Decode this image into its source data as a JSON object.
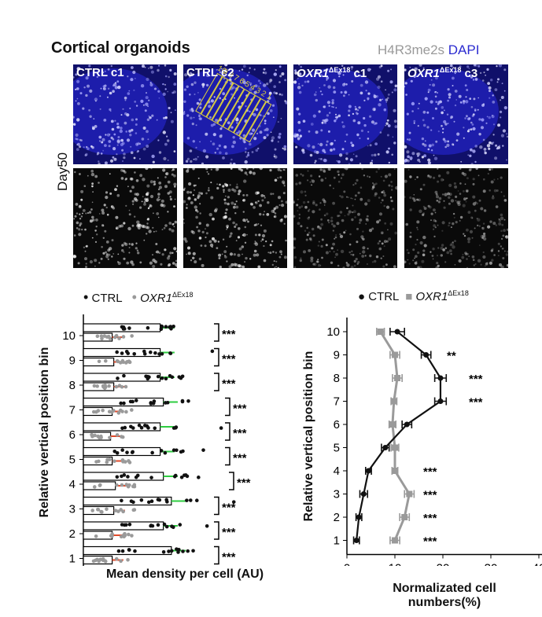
{
  "header": {
    "title": "Cortical organoids",
    "stain_gray": "H4R3me2s",
    "stain_blue": "DAPI",
    "day_label": "Day50"
  },
  "panels": [
    {
      "label": "CTRL c1",
      "italic": false,
      "sup": ""
    },
    {
      "label": "CTRL c2",
      "italic": false,
      "sup": ""
    },
    {
      "label": "OXR1",
      "italic": true,
      "sup": "ΔEx18",
      "suffix": " c1"
    },
    {
      "label": "OXR1",
      "italic": true,
      "sup": "ΔEx18",
      "suffix": " c3"
    }
  ],
  "bin_overlay_numbers": [
    "10",
    "9",
    "8",
    "7",
    "6",
    "5",
    "4",
    "3",
    "2",
    "1"
  ],
  "colors": {
    "ctrl": "#111111",
    "oxr1": "#9a9a9a",
    "ctrl_err": "#2ecc40",
    "oxr1_err": "#e04a2a",
    "dapi": "#2323c8",
    "bin_box": "#e0d23a"
  },
  "chart_data": [
    {
      "type": "bar",
      "legend": [
        "CTRL",
        "OXR1"
      ],
      "legend_sup": "ΔEx18",
      "xlabel": "Mean density per cell (AU)",
      "ylabel": "Relative vertical position bin",
      "xlim": [
        0,
        12000
      ],
      "xticks": [
        "0",
        "3000",
        "6000",
        "9000",
        "12000"
      ],
      "categories": [
        "10",
        "9",
        "8",
        "7",
        "6",
        "5",
        "4",
        "3",
        "2",
        "1"
      ],
      "series": [
        {
          "name": "CTRL",
          "values": [
            4800,
            4800,
            4800,
            5000,
            4800,
            4800,
            5000,
            5500,
            5000,
            5500
          ]
        },
        {
          "name": "OXR1",
          "values": [
            1800,
            1900,
            1900,
            1800,
            1700,
            1800,
            2000,
            1900,
            1800,
            1800
          ]
        }
      ],
      "significance": [
        "***",
        "***",
        "***",
        "***",
        "***",
        "***",
        "***",
        "***",
        "***",
        "***"
      ]
    },
    {
      "type": "line",
      "legend": [
        "CTRL",
        "OXR1"
      ],
      "legend_sup": "ΔEx18",
      "xlabel_line1": "Normalizated cell",
      "xlabel_line2": "numbers(%)",
      "ylabel": "Relative vertical position bin",
      "xlim": [
        0,
        40
      ],
      "xticks": [
        "0",
        "10",
        "20",
        "30",
        "40"
      ],
      "yticks": [
        "10",
        "9",
        "8",
        "7",
        "6",
        "5",
        "4",
        "3",
        "2",
        "1"
      ],
      "series": [
        {
          "name": "CTRL",
          "y": [
            10,
            9,
            8,
            7,
            6,
            5,
            4,
            3,
            2,
            1
          ],
          "x": [
            10.5,
            16.5,
            19.5,
            19.5,
            12.5,
            8.0,
            4.5,
            3.5,
            2.5,
            2.0
          ],
          "err": [
            1.5,
            1.0,
            1.2,
            1.2,
            1.0,
            0.8,
            0.6,
            0.8,
            0.6,
            0.6
          ]
        },
        {
          "name": "OXR1",
          "y": [
            10,
            9,
            8,
            7,
            6,
            5,
            4,
            3,
            2,
            1
          ],
          "x": [
            7.0,
            10.0,
            10.5,
            9.8,
            9.5,
            10.0,
            10.0,
            13.0,
            12.0,
            10.0
          ],
          "err": [
            0.8,
            1.0,
            1.0,
            0.6,
            0.7,
            0.8,
            0.6,
            1.0,
            1.0,
            1.0
          ]
        }
      ],
      "significance": [
        {
          "bin": "9",
          "label": "**"
        },
        {
          "bin": "8",
          "label": "***"
        },
        {
          "bin": "7",
          "label": "***"
        },
        {
          "bin": "4",
          "label": "***"
        },
        {
          "bin": "3",
          "label": "***"
        },
        {
          "bin": "2",
          "label": "***"
        },
        {
          "bin": "1",
          "label": "***"
        }
      ]
    }
  ]
}
